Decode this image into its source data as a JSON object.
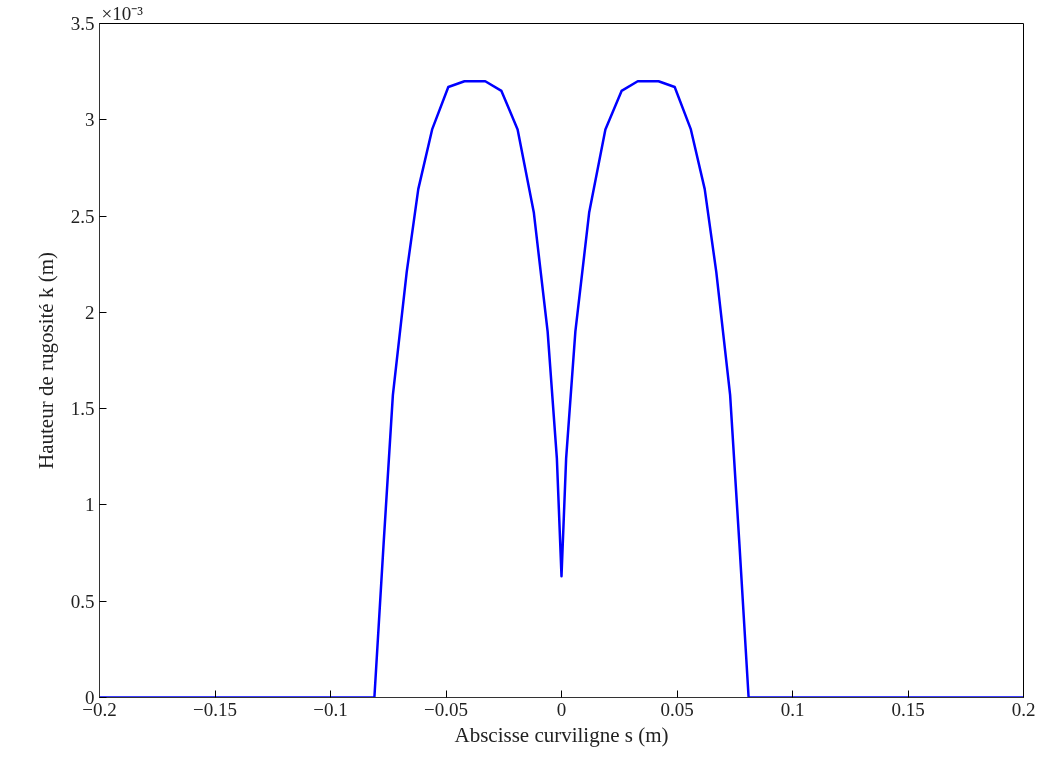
{
  "chart_data": {
    "type": "line",
    "xlabel": "Abscisse curviligne s (m)",
    "ylabel": "Hauteur de rugosité k (m)",
    "annotations": [
      "×10⁻³"
    ],
    "x": [
      -0.2,
      -0.081,
      -0.077,
      -0.073,
      -0.067,
      -0.062,
      -0.056,
      -0.049,
      -0.042,
      -0.033,
      -0.026,
      -0.019,
      -0.012,
      -0.006,
      -0.002,
      0,
      0.002,
      0.006,
      0.012,
      0.019,
      0.026,
      0.033,
      0.042,
      0.049,
      0.056,
      0.062,
      0.067,
      0.073,
      0.077,
      0.081,
      0.2
    ],
    "series": [
      {
        "color": "#0000ff",
        "values": [
          0,
          0,
          0.8,
          1.57,
          2.21,
          2.64,
          2.95,
          3.17,
          3.2,
          3.2,
          3.15,
          2.95,
          2.52,
          1.9,
          1.24,
          0.63,
          1.24,
          1.9,
          2.52,
          2.95,
          3.15,
          3.2,
          3.2,
          3.17,
          2.95,
          2.64,
          2.21,
          1.57,
          0.8,
          0,
          0
        ]
      }
    ],
    "xlim": [
      -0.2,
      0.2
    ],
    "xticks": [
      -0.2,
      -0.15,
      -0.1,
      -0.05,
      0,
      0.05,
      0.1,
      0.15,
      0.2
    ],
    "ylim": [
      0,
      3.5
    ],
    "yticks": [
      0,
      0.5,
      1,
      1.5,
      2,
      2.5,
      3,
      3.5
    ],
    "grid": false,
    "marker": "none",
    "line_style": "solid"
  }
}
